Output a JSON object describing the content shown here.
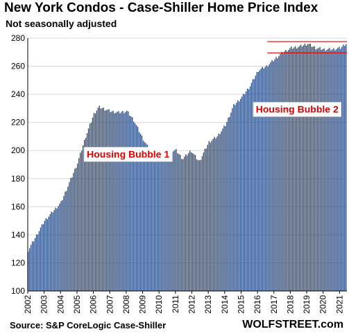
{
  "title": "New York Condos - Case-Shiller Home Price Index",
  "subtitle": "Not seasonally adjusted",
  "source": "Source: S&P CoreLogic Case-Shiller",
  "brand": "WOLFSTREET.com",
  "colors": {
    "bar": "#2b4a7e",
    "annotation": "#e00000",
    "grid": "#d9d9d9"
  },
  "chart_data": {
    "type": "bar",
    "ylim": [
      100,
      280
    ],
    "yticks": [
      100,
      120,
      140,
      160,
      180,
      200,
      220,
      240,
      260,
      280
    ],
    "xticks": [
      "2002",
      "2003",
      "2004",
      "2005",
      "2006",
      "2007",
      "2008",
      "2009",
      "2010",
      "2011",
      "2012",
      "2013",
      "2014",
      "2015",
      "2016",
      "2017",
      "2018",
      "2019",
      "2020",
      "2021"
    ],
    "grid": true,
    "annual_anchors": [
      {
        "x": 2002.0,
        "y": 129
      },
      {
        "x": 2003.0,
        "y": 150
      },
      {
        "x": 2004.0,
        "y": 163
      },
      {
        "x": 2005.0,
        "y": 191
      },
      {
        "x": 2005.5,
        "y": 210
      },
      {
        "x": 2006.0,
        "y": 226
      },
      {
        "x": 2006.3,
        "y": 231
      },
      {
        "x": 2007.0,
        "y": 228
      },
      {
        "x": 2007.5,
        "y": 227
      },
      {
        "x": 2008.0,
        "y": 228
      },
      {
        "x": 2008.4,
        "y": 222
      },
      {
        "x": 2009.0,
        "y": 208
      },
      {
        "x": 2009.5,
        "y": 198
      },
      {
        "x": 2010.0,
        "y": 199
      },
      {
        "x": 2011.0,
        "y": 200
      },
      {
        "x": 2011.4,
        "y": 194
      },
      {
        "x": 2011.9,
        "y": 200
      },
      {
        "x": 2012.4,
        "y": 192
      },
      {
        "x": 2013.0,
        "y": 206
      },
      {
        "x": 2013.5,
        "y": 210
      },
      {
        "x": 2014.0,
        "y": 218
      },
      {
        "x": 2014.5,
        "y": 232
      },
      {
        "x": 2015.0,
        "y": 238
      },
      {
        "x": 2015.5,
        "y": 246
      },
      {
        "x": 2016.0,
        "y": 257
      },
      {
        "x": 2016.5,
        "y": 260
      },
      {
        "x": 2017.0,
        "y": 265
      },
      {
        "x": 2017.5,
        "y": 270
      },
      {
        "x": 2018.0,
        "y": 273
      },
      {
        "x": 2018.5,
        "y": 274
      },
      {
        "x": 2019.0,
        "y": 276
      },
      {
        "x": 2019.5,
        "y": 273
      },
      {
        "x": 2020.0,
        "y": 272
      },
      {
        "x": 2020.5,
        "y": 272
      },
      {
        "x": 2021.0,
        "y": 273
      },
      {
        "x": 2021.3,
        "y": 276
      }
    ],
    "ranges": [
      {
        "y": 277.5,
        "x_start": 2016.6
      },
      {
        "y": 269.5,
        "x_start": 2016.6
      }
    ],
    "annotations": [
      {
        "text": "Housing Bubble 1",
        "x": 2005.6,
        "y": 195
      },
      {
        "text": "Housing Bubble 2",
        "x": 2015.9,
        "y": 227
      }
    ]
  }
}
